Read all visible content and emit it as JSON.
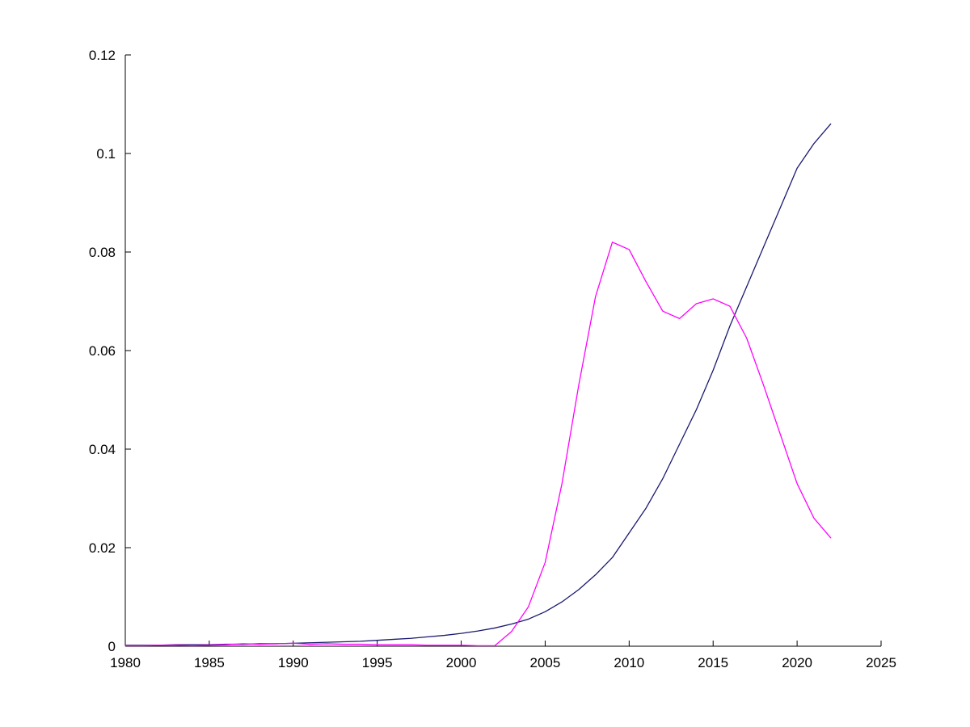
{
  "chart_data": {
    "type": "line",
    "title": "",
    "xlabel": "",
    "ylabel": "",
    "grid": false,
    "legend": null,
    "xlim": [
      1980,
      2025
    ],
    "ylim": [
      0,
      0.12
    ],
    "x_ticks": [
      1980,
      1985,
      1990,
      1995,
      2000,
      2005,
      2010,
      2015,
      2020,
      2025
    ],
    "x_tick_labels": [
      "1980",
      "1985",
      "1990",
      "1995",
      "2000",
      "2005",
      "2010",
      "2015",
      "2020",
      "2025"
    ],
    "y_ticks": [
      0,
      0.02,
      0.04,
      0.06,
      0.08,
      0.1,
      0.12
    ],
    "y_tick_labels": [
      "0",
      "0.02",
      "0.04",
      "0.06",
      "0.08",
      "0.1",
      "0.12"
    ],
    "x": [
      1980,
      1981,
      1982,
      1983,
      1984,
      1985,
      1986,
      1987,
      1988,
      1989,
      1990,
      1991,
      1992,
      1993,
      1994,
      1995,
      1996,
      1997,
      1998,
      1999,
      2000,
      2001,
      2002,
      2003,
      2004,
      2005,
      2006,
      2007,
      2008,
      2009,
      2010,
      2011,
      2012,
      2013,
      2014,
      2015,
      2016,
      2017,
      2018,
      2019,
      2020,
      2021,
      2022
    ],
    "series": [
      {
        "name": "blue",
        "color": "#191970",
        "values": [
          0.0002,
          0.0002,
          0.0002,
          0.0003,
          0.0003,
          0.0003,
          0.0004,
          0.0004,
          0.0005,
          0.0005,
          0.0006,
          0.0007,
          0.0008,
          0.0009,
          0.001,
          0.0012,
          0.0014,
          0.0016,
          0.0019,
          0.0022,
          0.0026,
          0.0031,
          0.0037,
          0.0045,
          0.0055,
          0.007,
          0.009,
          0.0115,
          0.0145,
          0.018,
          0.023,
          0.028,
          0.034,
          0.041,
          0.048,
          0.056,
          0.065,
          0.073,
          0.081,
          0.089,
          0.097,
          0.102,
          0.106
        ]
      },
      {
        "name": "magenta",
        "color": "#ff00ff",
        "values": [
          0.0001,
          0.0001,
          0.0002,
          0.0002,
          0.0001,
          0.0002,
          0.0003,
          0.0005,
          0.0004,
          0.0005,
          0.0006,
          0.0004,
          0.0005,
          0.0004,
          0.0004,
          0.0003,
          0.0003,
          0.0003,
          0.0002,
          0.0002,
          0.0002,
          0.0001,
          0.0001,
          0.003,
          0.008,
          0.017,
          0.033,
          0.053,
          0.071,
          0.082,
          0.0805,
          0.074,
          0.068,
          0.0665,
          0.0695,
          0.0705,
          0.069,
          0.0625,
          0.053,
          0.043,
          0.033,
          0.026,
          0.022
        ]
      }
    ]
  }
}
